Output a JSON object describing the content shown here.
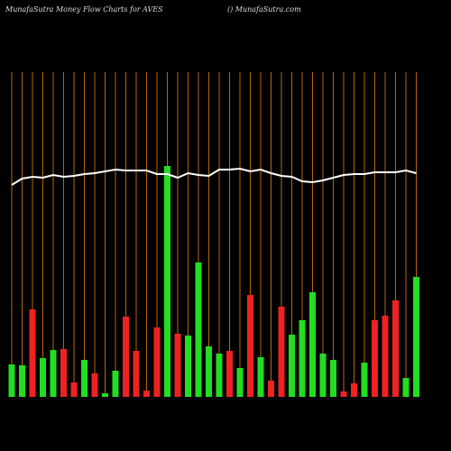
{
  "chart_data": {
    "type": "money-flow",
    "title": "MunafaSutra  Money Flow  Charts for AVES",
    "subtitle": "() MunafaSutra.com",
    "ylim": [
      0,
      360
    ],
    "grid": true,
    "grid_color": "#b8660b",
    "bars": {
      "values": [
        36,
        35,
        97,
        43,
        52,
        53,
        16,
        41,
        26,
        4,
        29,
        89,
        51,
        7,
        77,
        256,
        70,
        68,
        149,
        56,
        48,
        51,
        32,
        113,
        44,
        18,
        100,
        69,
        85,
        116,
        48,
        41,
        6,
        15,
        38,
        85,
        90,
        107,
        21,
        133
      ],
      "colors": [
        "#22dd22",
        "#22dd22",
        "#ee2222",
        "#22dd22",
        "#22dd22",
        "#ee2222",
        "#ee2222",
        "#22dd22",
        "#ee2222",
        "#22dd22",
        "#22dd22",
        "#ee2222",
        "#ee2222",
        "#ee2222",
        "#ee2222",
        "#22dd22",
        "#ee2222",
        "#22dd22",
        "#22dd22",
        "#22dd22",
        "#22dd22",
        "#ee2222",
        "#22dd22",
        "#ee2222",
        "#22dd22",
        "#ee2222",
        "#ee2222",
        "#22dd22",
        "#22dd22",
        "#22dd22",
        "#22dd22",
        "#22dd22",
        "#ee2222",
        "#ee2222",
        "#22dd22",
        "#ee2222",
        "#ee2222",
        "#ee2222",
        "#22dd22",
        "#22dd22"
      ]
    },
    "line": {
      "color": "#ffffff",
      "values": [
        235,
        242,
        244,
        243,
        246,
        244,
        245,
        247,
        248,
        250,
        252,
        251,
        251,
        251,
        247,
        247,
        243,
        248,
        246,
        245,
        252,
        252,
        253,
        250,
        252,
        248,
        245,
        244,
        239,
        238,
        240,
        243,
        246,
        247,
        247,
        249,
        249,
        249,
        251,
        248
      ]
    }
  }
}
